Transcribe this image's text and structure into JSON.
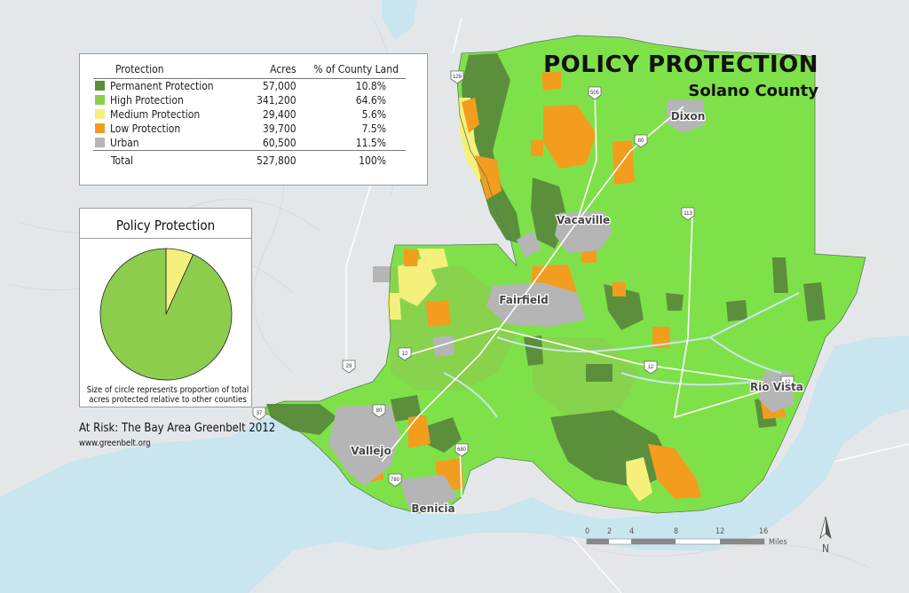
{
  "title": "POLICY PROTECTION",
  "subtitle": "Solano County",
  "legend": {
    "headers": [
      "Protection",
      "Acres",
      "% of County Land"
    ],
    "rows": [
      {
        "label": "Permanent Protection",
        "acres": "57,000",
        "pct": "10.8%",
        "color": "#5b8f3c"
      },
      {
        "label": "High Protection",
        "acres": "341,200",
        "pct": "64.6%",
        "color": "#8ccd4e"
      },
      {
        "label": "Medium Protection",
        "acres": "29,400",
        "pct": "5.6%",
        "color": "#f5f07c"
      },
      {
        "label": "Low Protection",
        "acres": "39,700",
        "pct": "7.5%",
        "color": "#f29d1e"
      },
      {
        "label": "Urban",
        "acres": "60,500",
        "pct": "11.5%",
        "color": "#b5b5b5"
      }
    ],
    "total": {
      "label": "Total",
      "acres": "527,800",
      "pct": "100%"
    }
  },
  "pie": {
    "title": "Policy Protection",
    "note": "Size of circle represents proportion of total acres protected relative to other counties",
    "slices": [
      {
        "name": "High Protection",
        "fraction": 0.932,
        "color": "#8ccd4e"
      },
      {
        "name": "Medium Protection",
        "fraction": 0.068,
        "color": "#f5f07c"
      }
    ]
  },
  "credit": {
    "title": "At Risk: The Bay Area Greenbelt 2012",
    "url": "www.greenbelt.org"
  },
  "cities": [
    "Dixon",
    "Vacaville",
    "Fairfield",
    "Rio Vista",
    "Vallejo",
    "Benicia"
  ],
  "highway_shields": [
    "128",
    "505",
    "80",
    "113",
    "12",
    "12",
    "29",
    "37",
    "80",
    "780",
    "680",
    "12"
  ],
  "scale": {
    "ticks": [
      "0",
      "2",
      "4",
      "8",
      "12",
      "16"
    ],
    "unit": "Miles"
  },
  "north": "N",
  "colors": {
    "water": "#c9e5ef",
    "land_outside": "#e3e6e8",
    "high": "#8ccd4e",
    "high_bright": "#7fe14a",
    "permanent": "#5b8f3c",
    "medium": "#f5f07c",
    "low": "#f29d1e",
    "urban": "#b5b5b5"
  }
}
